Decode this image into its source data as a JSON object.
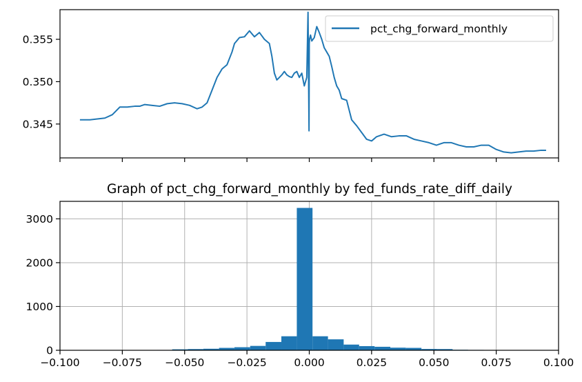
{
  "chart_data": [
    {
      "type": "line",
      "title": "",
      "xlabel": "",
      "ylabel": "",
      "xlim": [
        -0.1,
        0.1
      ],
      "ylim": [
        0.341,
        0.3585
      ],
      "yticks": [
        0.345,
        0.35,
        0.355
      ],
      "ytick_labels": [
        "0.345",
        "0.350",
        "0.355"
      ],
      "xticks": [
        -0.1,
        -0.075,
        -0.05,
        -0.025,
        0.0,
        0.025,
        0.05,
        0.075,
        0.1
      ],
      "xtick_labels_shown": false,
      "grid": false,
      "legend": {
        "placement": "top-right",
        "entries": [
          "pct_chg_forward_monthly"
        ]
      },
      "series": [
        {
          "name": "pct_chg_forward_monthly",
          "color": "#1f77b4",
          "x": [
            -0.092,
            -0.088,
            -0.085,
            -0.082,
            -0.079,
            -0.076,
            -0.073,
            -0.07,
            -0.068,
            -0.066,
            -0.063,
            -0.06,
            -0.057,
            -0.054,
            -0.051,
            -0.048,
            -0.045,
            -0.043,
            -0.041,
            -0.039,
            -0.037,
            -0.035,
            -0.033,
            -0.031,
            -0.03,
            -0.028,
            -0.026,
            -0.024,
            -0.022,
            -0.02,
            -0.018,
            -0.016,
            -0.015,
            -0.014,
            -0.013,
            -0.012,
            -0.011,
            -0.01,
            -0.009,
            -0.008,
            -0.007,
            -0.006,
            -0.005,
            -0.004,
            -0.003,
            -0.002,
            -0.001,
            -0.0005,
            -0.0001,
            0.0,
            0.0001,
            0.0005,
            0.001,
            0.002,
            0.003,
            0.004,
            0.005,
            0.006,
            0.007,
            0.008,
            0.009,
            0.01,
            0.011,
            0.012,
            0.013,
            0.015,
            0.017,
            0.019,
            0.021,
            0.023,
            0.025,
            0.027,
            0.03,
            0.033,
            0.036,
            0.039,
            0.042,
            0.045,
            0.048,
            0.051,
            0.054,
            0.057,
            0.06,
            0.063,
            0.066,
            0.069,
            0.072,
            0.075,
            0.078,
            0.081,
            0.084,
            0.087,
            0.09,
            0.093,
            0.095
          ],
          "values": [
            0.3455,
            0.3455,
            0.3456,
            0.3457,
            0.3461,
            0.347,
            0.347,
            0.3471,
            0.3471,
            0.3473,
            0.3472,
            0.3471,
            0.3474,
            0.3475,
            0.3474,
            0.3472,
            0.3468,
            0.347,
            0.3475,
            0.349,
            0.3505,
            0.3515,
            0.352,
            0.3535,
            0.3545,
            0.3552,
            0.3553,
            0.356,
            0.3553,
            0.3558,
            0.355,
            0.3545,
            0.353,
            0.351,
            0.3502,
            0.3505,
            0.3508,
            0.3512,
            0.3508,
            0.3506,
            0.3505,
            0.351,
            0.3512,
            0.3505,
            0.351,
            0.3495,
            0.3505,
            0.3582,
            0.3442,
            0.3545,
            0.355,
            0.3555,
            0.3548,
            0.3552,
            0.3565,
            0.3558,
            0.355,
            0.354,
            0.3535,
            0.353,
            0.3518,
            0.3505,
            0.3495,
            0.349,
            0.348,
            0.3478,
            0.3455,
            0.3448,
            0.344,
            0.3432,
            0.343,
            0.3435,
            0.3438,
            0.3435,
            0.3436,
            0.3436,
            0.3432,
            0.343,
            0.3428,
            0.3425,
            0.3428,
            0.3428,
            0.3425,
            0.3423,
            0.3423,
            0.3425,
            0.3425,
            0.342,
            0.3417,
            0.3416,
            0.3417,
            0.3418,
            0.3418,
            0.3419,
            0.3419
          ]
        }
      ]
    },
    {
      "type": "bar",
      "title": "Graph of pct_chg_forward_monthly by fed_funds_rate_diff_daily",
      "xlabel": "",
      "ylabel": "",
      "xlim": [
        -0.1,
        0.1
      ],
      "ylim": [
        0,
        3400
      ],
      "xticks": [
        -0.1,
        -0.075,
        -0.05,
        -0.025,
        0.0,
        0.025,
        0.05,
        0.075,
        0.1
      ],
      "xtick_labels": [
        "−0.100",
        "−0.075",
        "−0.050",
        "−0.025",
        "0.000",
        "0.025",
        "0.050",
        "0.075",
        "0.100"
      ],
      "yticks": [
        0,
        1000,
        2000,
        3000
      ],
      "ytick_labels": [
        "0",
        "1000",
        "2000",
        "3000"
      ],
      "grid": true,
      "color": "#1f77b4",
      "bins": [
        [
          -0.0924,
          -0.0862,
          3
        ],
        [
          -0.0862,
          -0.0799,
          3
        ],
        [
          -0.0799,
          -0.0737,
          4
        ],
        [
          -0.0737,
          -0.0675,
          4
        ],
        [
          -0.0675,
          -0.0612,
          6
        ],
        [
          -0.0612,
          -0.055,
          8
        ],
        [
          -0.055,
          -0.0487,
          22
        ],
        [
          -0.0487,
          -0.0425,
          28
        ],
        [
          -0.0425,
          -0.0362,
          35
        ],
        [
          -0.0362,
          -0.03,
          55
        ],
        [
          -0.03,
          -0.0237,
          70
        ],
        [
          -0.0237,
          -0.0175,
          100
        ],
        [
          -0.0175,
          -0.0112,
          190
        ],
        [
          -0.0112,
          -0.005,
          320
        ],
        [
          -0.005,
          0.0013,
          3250
        ],
        [
          0.0013,
          0.0075,
          320
        ],
        [
          0.0075,
          0.0138,
          250
        ],
        [
          0.0138,
          0.02,
          130
        ],
        [
          0.02,
          0.0262,
          95
        ],
        [
          0.0262,
          0.0325,
          80
        ],
        [
          0.0325,
          0.0387,
          60
        ],
        [
          0.0387,
          0.045,
          55
        ],
        [
          0.045,
          0.0512,
          30
        ],
        [
          0.0512,
          0.0575,
          28
        ],
        [
          0.0575,
          0.0637,
          12
        ],
        [
          0.0637,
          0.07,
          9
        ],
        [
          0.07,
          0.0762,
          6
        ],
        [
          0.0762,
          0.0825,
          5
        ],
        [
          0.0825,
          0.0887,
          5
        ],
        [
          0.0887,
          0.095,
          4
        ]
      ]
    }
  ]
}
